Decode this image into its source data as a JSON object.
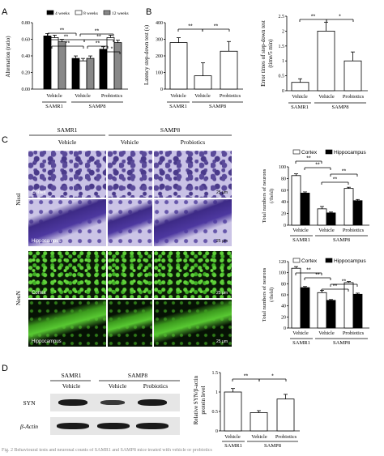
{
  "panels": {
    "A": {
      "letter": "A",
      "ylabel": "Alternation (ratio)",
      "legend": [
        "4 weeks",
        "8 weeks",
        "12 weeks"
      ],
      "yticks": [
        "0.00",
        "0.20",
        "0.40",
        "0.60",
        "0.80"
      ],
      "groups": [
        {
          "name": "Vehicle",
          "strain": "SAMR1",
          "values": [
            0.64,
            0.62,
            0.57
          ]
        },
        {
          "name": "Vehicle",
          "strain": "SAMP8",
          "values": [
            0.37,
            0.34,
            0.37
          ]
        },
        {
          "name": "Probiotics",
          "strain": "SAMP8",
          "values": [
            0.48,
            0.62,
            0.56
          ]
        }
      ],
      "strains": [
        "SAMR1",
        "SAMP8"
      ],
      "sig": [
        "**",
        "**",
        "**",
        "**",
        "**",
        "**",
        "*"
      ]
    },
    "B1": {
      "letter": "B",
      "ylabel": "Latency step-down test (s)",
      "yticks": [
        "0",
        "100",
        "200",
        "300",
        "400"
      ],
      "groups": [
        "Vehicle",
        "Vehicle",
        "Probiotics"
      ],
      "values": [
        280,
        80,
        228
      ],
      "strains": [
        "SAMR1",
        "SAMP8"
      ],
      "sig": [
        "**",
        "**"
      ]
    },
    "B2": {
      "ylabel_1": "Error times of step-down test",
      "ylabel_2": "(time/5 min)",
      "yticks": [
        "0",
        "0.5",
        "1",
        "1.5",
        "2",
        "2.5"
      ],
      "groups": [
        "Vehicle",
        "Vehicle",
        "Probiotics"
      ],
      "values": [
        0.28,
        2.0,
        1.0
      ],
      "strains": [
        "SAMR1",
        "SAMP8"
      ],
      "sig": [
        "**",
        "*"
      ]
    },
    "C": {
      "letter": "C",
      "col_headers": [
        "SAMR1",
        "SAMP8",
        "Vehicle",
        "Vehicle",
        "Probiotics"
      ],
      "row_labels": [
        "Nissl",
        "NeuN"
      ],
      "region_labels": [
        "Cortex",
        "Hippocampus",
        "Cortex",
        "Hippocampus"
      ],
      "scale_label": "25 μm",
      "chart1": {
        "legend": [
          "Cortex",
          "Hippocampus"
        ],
        "ylabel_1": "Total numbers of neurons",
        "ylabel_2": "(/field)",
        "yticks": [
          "0",
          "20",
          "40",
          "60",
          "80",
          "100"
        ],
        "groups": [
          "Vehicle",
          "Vehicle",
          "Probiotics"
        ],
        "cortex": [
          85,
          28,
          63
        ],
        "hippocampus": [
          55,
          21,
          42
        ],
        "strains": [
          "SAMR1",
          "SAMP8"
        ],
        "sig": [
          "**",
          "**",
          "**",
          "**"
        ]
      },
      "chart2": {
        "legend": [
          "Cortex",
          "Hippocampus"
        ],
        "ylabel_1": "Total numbers of neurons",
        "ylabel_2": "(/field)",
        "yticks": [
          "0",
          "20",
          "40",
          "60",
          "80",
          "100",
          "120"
        ],
        "groups": [
          "Vehicle",
          "Vehicle",
          "Probiotics"
        ],
        "cortex": [
          108,
          64,
          82
        ],
        "hippocampus": [
          73,
          50,
          61
        ],
        "strains": [
          "SAMR1",
          "SAMP8"
        ],
        "sig": [
          "**",
          "**",
          "**",
          "**"
        ]
      }
    },
    "D": {
      "letter": "D",
      "strain_headers": [
        "SAMR1",
        "SAMP8"
      ],
      "lane_headers": [
        "Vehicle",
        "Vehicle",
        "Probiotics"
      ],
      "blot_labels": [
        "SYN",
        "β-Actin"
      ],
      "ylabel_1": "Relative SYN/β-actin",
      "ylabel_2": "protein level",
      "yticks": [
        "0",
        "0.5",
        "1",
        "1.5"
      ],
      "groups": [
        "Vehicle",
        "Vehicle",
        "Probiotics"
      ],
      "values": [
        1.0,
        0.47,
        0.82
      ],
      "strains": [
        "SAMR1",
        "SAMP8"
      ],
      "sig": [
        "**",
        "*"
      ]
    }
  },
  "caption": "Fig. 2 Behavioural tests and neuronal counts of SAMR1 and SAMP8 mice treated with vehicle or probiotics"
}
